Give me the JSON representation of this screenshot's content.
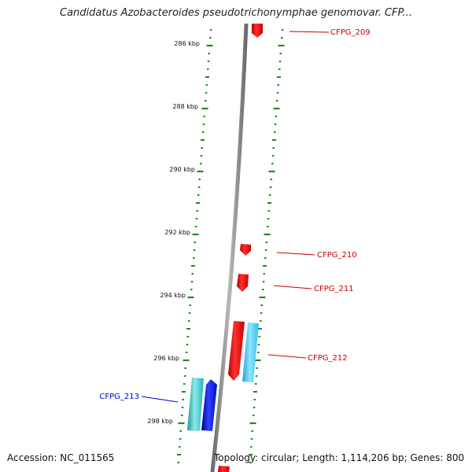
{
  "title": "Candidatus Azobacteroides pseudotrichonymphae genomovar. CFP...",
  "accession_text": "Accession: NC_011565",
  "summary_text": "Topology: circular; Length: 1,114,206 bp; Genes: 800",
  "scale_labels": [
    "286 kbp",
    "288 kbp",
    "290 kbp",
    "292 kbp",
    "294 kbp",
    "296 kbp",
    "298 kbp"
  ],
  "genes": [
    {
      "label": "CFPG_209",
      "strand": "forward",
      "color": "#ff0000"
    },
    {
      "label": "CFPG_210",
      "strand": "forward",
      "color": "#ff0000"
    },
    {
      "label": "CFPG_211",
      "strand": "forward",
      "color": "#ff0000"
    },
    {
      "label": "CFPG_212",
      "strand": "forward",
      "color": "#ff0000"
    },
    {
      "label": "CFPG_213",
      "strand": "reverse",
      "color": "#0000ff"
    }
  ],
  "colors": {
    "backbone": "#8c8c8c",
    "ticks": "#1e8a1e",
    "forward_gene": "#ff0000",
    "forward_gene_alt": "#33ccff",
    "reverse_gene": "#0000ff",
    "reverse_gene_alt": "#22c0c0",
    "forward_label": "#cc0000",
    "reverse_label": "#0000cc"
  }
}
